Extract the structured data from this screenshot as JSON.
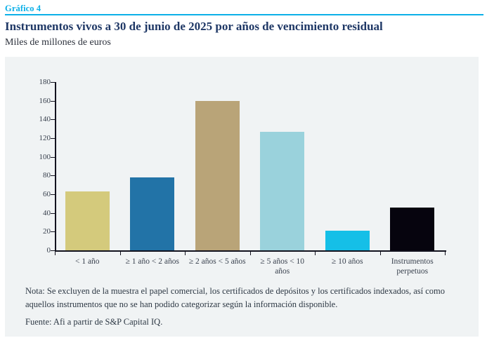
{
  "header": {
    "figure_label": "Gráfico 4",
    "title": "Instrumentos vivos a 30 de junio de 2025 por años de vencimiento residual",
    "subtitle": "Miles de millones de euros"
  },
  "chart_data": {
    "type": "bar",
    "title": "Instrumentos vivos a 30 de junio de 2025 por años de vencimiento residual",
    "units_label": "Miles de millones de euros",
    "categories": [
      "< 1 año",
      "≥ 1 año < 2 años",
      "≥ 2 años < 5 años",
      "≥ 5 años < 10 años",
      "≥ 10 años",
      "Instrumentos perpetuos"
    ],
    "tick_label_lines": [
      [
        "< 1 año"
      ],
      [
        "≥ 1 año < 2 años"
      ],
      [
        "≥ 2 años < 5 años"
      ],
      [
        "≥ 5 años < 10",
        "años"
      ],
      [
        "≥ 10 años"
      ],
      [
        "Instrumentos",
        "perpetuos"
      ]
    ],
    "values": [
      63,
      78,
      160,
      127,
      21,
      46
    ],
    "bar_colors": [
      "#d4ca7c",
      "#2273a7",
      "#b9a478",
      "#9ad2dc",
      "#15bfe7",
      "#06040e"
    ],
    "ylim": [
      0,
      180
    ],
    "ytick_step": 20,
    "grid": false,
    "legend": "none"
  },
  "footer": {
    "note": "Nota: Se excluyen de la muestra el papel comercial, los certificados de depósitos y los certificados indexados, así como aquellos instrumentos que no se han podido categorizar según la información disponible.",
    "source": "Fuente: Afi a partir de S&P Capital IQ."
  },
  "colors": {
    "accent_cyan": "#0cb0e8",
    "title_navy": "#1f3866",
    "panel_background": "#f0f3f4",
    "axis": "#12121e",
    "body_text": "#2d3844"
  }
}
